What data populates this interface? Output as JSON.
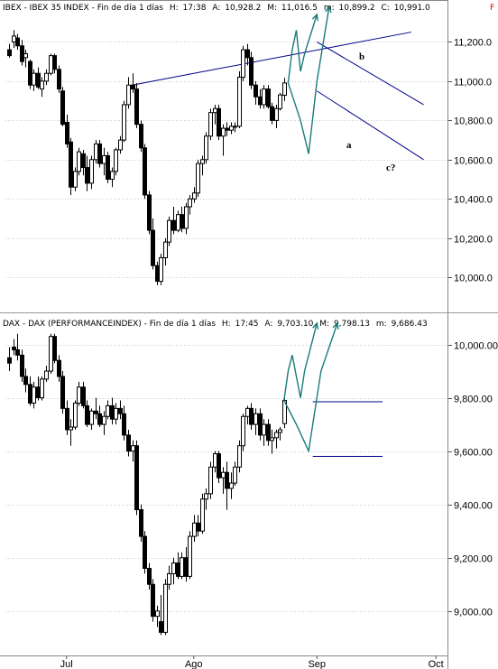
{
  "chart_data": [
    {
      "type": "candlestick",
      "header": {
        "symbol": "IBEX",
        "name": "IBEX 35 INDEX",
        "period": "Fin de día 1 días",
        "h_label": "H:",
        "h_value": "17:38",
        "a_label": "A:",
        "a_value": "10,928.2",
        "m_label": "M:",
        "m_value": "11,016.5",
        "min_label": "m:",
        "min_value": "10,899.2",
        "c_label": "C:",
        "c_value": "10,991.0",
        "flag": "F"
      },
      "ylim": [
        9840,
        11340
      ],
      "yticks": [
        "10,000.0",
        "10,200.0",
        "10,400.0",
        "10,600.0",
        "10,800.0",
        "11,000.0",
        "11,200.0"
      ],
      "ytick_values": [
        10000,
        10200,
        10400,
        10600,
        10800,
        11000,
        11200
      ],
      "candles": [
        {
          "o": 11160,
          "h": 11190,
          "l": 11120,
          "c": 11130
        },
        {
          "o": 11200,
          "h": 11260,
          "l": 11170,
          "c": 11230
        },
        {
          "o": 11220,
          "h": 11240,
          "l": 11160,
          "c": 11180
        },
        {
          "o": 11180,
          "h": 11210,
          "l": 11080,
          "c": 11100
        },
        {
          "o": 11120,
          "h": 11160,
          "l": 11070,
          "c": 11140
        },
        {
          "o": 11100,
          "h": 11110,
          "l": 10960,
          "c": 10980
        },
        {
          "o": 10980,
          "h": 11060,
          "l": 10950,
          "c": 11040
        },
        {
          "o": 11040,
          "h": 11070,
          "l": 10960,
          "c": 10970
        },
        {
          "o": 10960,
          "h": 11020,
          "l": 10920,
          "c": 11000
        },
        {
          "o": 11000,
          "h": 11060,
          "l": 10980,
          "c": 11040
        },
        {
          "o": 11040,
          "h": 11140,
          "l": 11030,
          "c": 11130
        },
        {
          "o": 11130,
          "h": 11140,
          "l": 11040,
          "c": 11060
        },
        {
          "o": 11060,
          "h": 11080,
          "l": 10940,
          "c": 10960
        },
        {
          "o": 10950,
          "h": 10970,
          "l": 10770,
          "c": 10780
        },
        {
          "o": 10790,
          "h": 10830,
          "l": 10660,
          "c": 10680
        },
        {
          "o": 10690,
          "h": 10710,
          "l": 10420,
          "c": 10460
        },
        {
          "o": 10460,
          "h": 10560,
          "l": 10440,
          "c": 10540
        },
        {
          "o": 10540,
          "h": 10660,
          "l": 10520,
          "c": 10640
        },
        {
          "o": 10630,
          "h": 10650,
          "l": 10520,
          "c": 10560
        },
        {
          "o": 10560,
          "h": 10620,
          "l": 10440,
          "c": 10480
        },
        {
          "o": 10480,
          "h": 10620,
          "l": 10450,
          "c": 10600
        },
        {
          "o": 10600,
          "h": 10700,
          "l": 10580,
          "c": 10680
        },
        {
          "o": 10680,
          "h": 10700,
          "l": 10560,
          "c": 10580
        },
        {
          "o": 10580,
          "h": 10660,
          "l": 10520,
          "c": 10620
        },
        {
          "o": 10620,
          "h": 10640,
          "l": 10480,
          "c": 10500
        },
        {
          "o": 10500,
          "h": 10560,
          "l": 10460,
          "c": 10540
        },
        {
          "o": 10540,
          "h": 10660,
          "l": 10520,
          "c": 10650
        },
        {
          "o": 10650,
          "h": 10720,
          "l": 10630,
          "c": 10700
        },
        {
          "o": 10700,
          "h": 10900,
          "l": 10690,
          "c": 10880
        },
        {
          "o": 10880,
          "h": 11020,
          "l": 10860,
          "c": 10980
        },
        {
          "o": 10980,
          "h": 11040,
          "l": 10940,
          "c": 10960
        },
        {
          "o": 10960,
          "h": 10990,
          "l": 10760,
          "c": 10780
        },
        {
          "o": 10780,
          "h": 10800,
          "l": 10640,
          "c": 10660
        },
        {
          "o": 10660,
          "h": 10680,
          "l": 10400,
          "c": 10420
        },
        {
          "o": 10420,
          "h": 10440,
          "l": 10220,
          "c": 10240
        },
        {
          "o": 10240,
          "h": 10300,
          "l": 10040,
          "c": 10060
        },
        {
          "o": 10060,
          "h": 10080,
          "l": 9960,
          "c": 9980
        },
        {
          "o": 9980,
          "h": 10120,
          "l": 9960,
          "c": 10100
        },
        {
          "o": 10100,
          "h": 10200,
          "l": 10060,
          "c": 10180
        },
        {
          "o": 10180,
          "h": 10310,
          "l": 10160,
          "c": 10290
        },
        {
          "o": 10290,
          "h": 10360,
          "l": 10220,
          "c": 10240
        },
        {
          "o": 10240,
          "h": 10340,
          "l": 10230,
          "c": 10320
        },
        {
          "o": 10320,
          "h": 10360,
          "l": 10230,
          "c": 10250
        },
        {
          "o": 10250,
          "h": 10380,
          "l": 10220,
          "c": 10360
        },
        {
          "o": 10360,
          "h": 10420,
          "l": 10320,
          "c": 10400
        },
        {
          "o": 10400,
          "h": 10460,
          "l": 10380,
          "c": 10430
        },
        {
          "o": 10430,
          "h": 10600,
          "l": 10410,
          "c": 10580
        },
        {
          "o": 10580,
          "h": 10620,
          "l": 10520,
          "c": 10600
        },
        {
          "o": 10600,
          "h": 10740,
          "l": 10580,
          "c": 10720
        },
        {
          "o": 10720,
          "h": 10860,
          "l": 10700,
          "c": 10840
        },
        {
          "o": 10840,
          "h": 10880,
          "l": 10780,
          "c": 10860
        },
        {
          "o": 10860,
          "h": 10880,
          "l": 10700,
          "c": 10720
        },
        {
          "o": 10720,
          "h": 10780,
          "l": 10620,
          "c": 10760
        },
        {
          "o": 10760,
          "h": 10790,
          "l": 10720,
          "c": 10750
        },
        {
          "o": 10750,
          "h": 10790,
          "l": 10730,
          "c": 10770
        },
        {
          "o": 10770,
          "h": 10790,
          "l": 10740,
          "c": 10770
        },
        {
          "o": 10770,
          "h": 11050,
          "l": 10760,
          "c": 11020
        },
        {
          "o": 11020,
          "h": 11180,
          "l": 11000,
          "c": 11160
        },
        {
          "o": 11160,
          "h": 11190,
          "l": 11080,
          "c": 11120
        },
        {
          "o": 11120,
          "h": 11150,
          "l": 10960,
          "c": 10980
        },
        {
          "o": 10980,
          "h": 11000,
          "l": 10880,
          "c": 10920
        },
        {
          "o": 10920,
          "h": 10960,
          "l": 10860,
          "c": 10880
        },
        {
          "o": 10880,
          "h": 10980,
          "l": 10860,
          "c": 10960
        },
        {
          "o": 10960,
          "h": 10980,
          "l": 10860,
          "c": 10870
        },
        {
          "o": 10870,
          "h": 10890,
          "l": 10780,
          "c": 10800
        },
        {
          "o": 10800,
          "h": 10880,
          "l": 10760,
          "c": 10860
        },
        {
          "o": 10860,
          "h": 10940,
          "l": 10850,
          "c": 10930
        },
        {
          "o": 10928,
          "h": 11017,
          "l": 10899,
          "c": 10991
        }
      ],
      "xtick_labels": [
        "Jul",
        "Ago",
        "Sep",
        "Oct"
      ],
      "xtick_index": [
        14,
        45,
        75,
        104
      ],
      "annotations": [
        "b",
        "a",
        "c?"
      ],
      "trendlines": [
        {
          "i1": 30,
          "v1": 10980,
          "i2": 98,
          "v2": 11250
        },
        {
          "i1": 75,
          "v1": 11200,
          "i2": 101,
          "v2": 10880
        },
        {
          "i1": 75,
          "v1": 10950,
          "i2": 101,
          "v2": 10600
        }
      ],
      "projections": [
        [
          [
            68,
            10991
          ],
          [
            69,
            11160
          ],
          [
            70,
            11260
          ],
          [
            71,
            11050
          ],
          [
            72,
            11140
          ],
          [
            75,
            11340
          ]
        ],
        [
          [
            68,
            10991
          ],
          [
            71,
            10800
          ],
          [
            73,
            10630
          ],
          [
            75,
            11000
          ],
          [
            78,
            11380
          ]
        ]
      ],
      "colors": {
        "candle": "#000000",
        "trendline": "#00008b",
        "projection": "#1a7a7a"
      }
    },
    {
      "type": "candlestick",
      "header": {
        "symbol": "DAX",
        "name": "DAX (PERFORMANCEINDEX)",
        "period": "Fin de día 1 días",
        "h_label": "H:",
        "h_value": "17:45",
        "a_label": "A:",
        "a_value": "9,703.10",
        "m_label": "M:",
        "m_value": "9,798.13",
        "min_label": "m:",
        "min_value": "9,686.43"
      },
      "ylim": [
        8840,
        10100
      ],
      "yticks": [
        "9,000.00",
        "9,200.00",
        "9,400.00",
        "9,600.00",
        "9,800.00",
        "10,000.00"
      ],
      "ytick_values": [
        9000,
        9200,
        9400,
        9600,
        9800,
        10000
      ],
      "candles": [
        {
          "o": 9950,
          "h": 9990,
          "l": 9900,
          "c": 9930
        },
        {
          "o": 9990,
          "h": 10020,
          "l": 9960,
          "c": 9980
        },
        {
          "o": 9980,
          "h": 10040,
          "l": 9940,
          "c": 9960
        },
        {
          "o": 9960,
          "h": 9980,
          "l": 9860,
          "c": 9880
        },
        {
          "o": 9880,
          "h": 9910,
          "l": 9820,
          "c": 9850
        },
        {
          "o": 9850,
          "h": 9880,
          "l": 9770,
          "c": 9780
        },
        {
          "o": 9780,
          "h": 9860,
          "l": 9760,
          "c": 9840
        },
        {
          "o": 9840,
          "h": 9880,
          "l": 9790,
          "c": 9800
        },
        {
          "o": 9800,
          "h": 9880,
          "l": 9790,
          "c": 9870
        },
        {
          "o": 9870,
          "h": 9920,
          "l": 9860,
          "c": 9900
        },
        {
          "o": 9900,
          "h": 10040,
          "l": 9890,
          "c": 10030
        },
        {
          "o": 10030,
          "h": 10040,
          "l": 9930,
          "c": 9940
        },
        {
          "o": 9940,
          "h": 9960,
          "l": 9860,
          "c": 9880
        },
        {
          "o": 9880,
          "h": 9900,
          "l": 9740,
          "c": 9760
        },
        {
          "o": 9760,
          "h": 9790,
          "l": 9660,
          "c": 9680
        },
        {
          "o": 9680,
          "h": 9720,
          "l": 9620,
          "c": 9690
        },
        {
          "o": 9690,
          "h": 9790,
          "l": 9680,
          "c": 9780
        },
        {
          "o": 9780,
          "h": 9860,
          "l": 9770,
          "c": 9840
        },
        {
          "o": 9840,
          "h": 9860,
          "l": 9760,
          "c": 9770
        },
        {
          "o": 9770,
          "h": 9790,
          "l": 9690,
          "c": 9700
        },
        {
          "o": 9700,
          "h": 9760,
          "l": 9680,
          "c": 9750
        },
        {
          "o": 9750,
          "h": 9800,
          "l": 9720,
          "c": 9740
        },
        {
          "o": 9740,
          "h": 9770,
          "l": 9690,
          "c": 9700
        },
        {
          "o": 9700,
          "h": 9750,
          "l": 9660,
          "c": 9730
        },
        {
          "o": 9730,
          "h": 9790,
          "l": 9720,
          "c": 9770
        },
        {
          "o": 9770,
          "h": 9800,
          "l": 9700,
          "c": 9720
        },
        {
          "o": 9720,
          "h": 9780,
          "l": 9700,
          "c": 9760
        },
        {
          "o": 9760,
          "h": 9790,
          "l": 9720,
          "c": 9740
        },
        {
          "o": 9740,
          "h": 9770,
          "l": 9640,
          "c": 9660
        },
        {
          "o": 9660,
          "h": 9680,
          "l": 9580,
          "c": 9600
        },
        {
          "o": 9600,
          "h": 9640,
          "l": 9560,
          "c": 9620
        },
        {
          "o": 9620,
          "h": 9640,
          "l": 9360,
          "c": 9380
        },
        {
          "o": 9380,
          "h": 9400,
          "l": 9260,
          "c": 9280
        },
        {
          "o": 9280,
          "h": 9300,
          "l": 9140,
          "c": 9160
        },
        {
          "o": 9160,
          "h": 9180,
          "l": 9080,
          "c": 9100
        },
        {
          "o": 9100,
          "h": 9120,
          "l": 8960,
          "c": 8980
        },
        {
          "o": 8980,
          "h": 9020,
          "l": 8940,
          "c": 9000
        },
        {
          "o": 8960,
          "h": 9060,
          "l": 8910,
          "c": 8920
        },
        {
          "o": 8920,
          "h": 9120,
          "l": 8910,
          "c": 9100
        },
        {
          "o": 9100,
          "h": 9170,
          "l": 9080,
          "c": 9140
        },
        {
          "o": 9140,
          "h": 9200,
          "l": 9100,
          "c": 9180
        },
        {
          "o": 9180,
          "h": 9220,
          "l": 9120,
          "c": 9130
        },
        {
          "o": 9130,
          "h": 9220,
          "l": 9120,
          "c": 9200
        },
        {
          "o": 9200,
          "h": 9240,
          "l": 9110,
          "c": 9130
        },
        {
          "o": 9130,
          "h": 9300,
          "l": 9120,
          "c": 9280
        },
        {
          "o": 9280,
          "h": 9360,
          "l": 9260,
          "c": 9330
        },
        {
          "o": 9330,
          "h": 9360,
          "l": 9280,
          "c": 9300
        },
        {
          "o": 9300,
          "h": 9440,
          "l": 9290,
          "c": 9420
        },
        {
          "o": 9420,
          "h": 9460,
          "l": 9380,
          "c": 9440
        },
        {
          "o": 9440,
          "h": 9560,
          "l": 9420,
          "c": 9540
        },
        {
          "o": 9540,
          "h": 9600,
          "l": 9520,
          "c": 9590
        },
        {
          "o": 9590,
          "h": 9600,
          "l": 9480,
          "c": 9500
        },
        {
          "o": 9500,
          "h": 9540,
          "l": 9440,
          "c": 9520
        },
        {
          "o": 9520,
          "h": 9560,
          "l": 9380,
          "c": 9460
        },
        {
          "o": 9460,
          "h": 9520,
          "l": 9420,
          "c": 9480
        },
        {
          "o": 9480,
          "h": 9560,
          "l": 9470,
          "c": 9540
        },
        {
          "o": 9540,
          "h": 9640,
          "l": 9520,
          "c": 9620
        },
        {
          "o": 9620,
          "h": 9740,
          "l": 9600,
          "c": 9730
        },
        {
          "o": 9730,
          "h": 9770,
          "l": 9700,
          "c": 9760
        },
        {
          "o": 9760,
          "h": 9780,
          "l": 9680,
          "c": 9700
        },
        {
          "o": 9700,
          "h": 9760,
          "l": 9660,
          "c": 9740
        },
        {
          "o": 9740,
          "h": 9760,
          "l": 9640,
          "c": 9660
        },
        {
          "o": 9660,
          "h": 9720,
          "l": 9620,
          "c": 9700
        },
        {
          "o": 9700,
          "h": 9720,
          "l": 9620,
          "c": 9640
        },
        {
          "o": 9640,
          "h": 9680,
          "l": 9590,
          "c": 9650
        },
        {
          "o": 9650,
          "h": 9680,
          "l": 9610,
          "c": 9670
        },
        {
          "o": 9670,
          "h": 9690,
          "l": 9640,
          "c": 9680
        },
        {
          "o": 9703,
          "h": 9798,
          "l": 9686,
          "c": 9790
        }
      ],
      "xtick_labels": [
        "Jul",
        "Ago",
        "Sep",
        "Oct"
      ],
      "xtick_index": [
        14,
        45,
        75,
        104
      ],
      "trendlines": [
        {
          "i1": 74,
          "v1": 9785,
          "i2": 91,
          "v2": 9785
        },
        {
          "i1": 74,
          "v1": 9580,
          "i2": 91,
          "v2": 9580
        }
      ],
      "projections": [
        [
          [
            67,
            9790
          ],
          [
            68,
            9900
          ],
          [
            69,
            9960
          ],
          [
            71,
            9800
          ],
          [
            72,
            9900
          ],
          [
            75,
            10080
          ]
        ],
        [
          [
            67,
            9790
          ],
          [
            70,
            9700
          ],
          [
            73,
            9600
          ],
          [
            76,
            9900
          ],
          [
            80,
            10080
          ]
        ]
      ],
      "colors": {
        "candle": "#000000",
        "trendline": "#00008b",
        "projection": "#1a7a7a"
      }
    }
  ]
}
